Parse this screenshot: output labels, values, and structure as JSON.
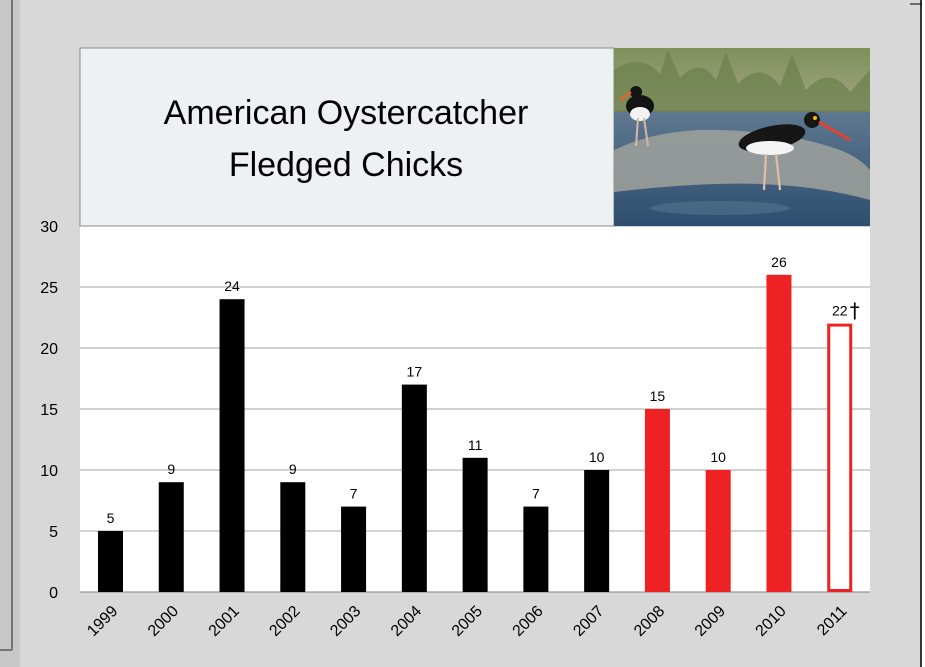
{
  "chart_data": {
    "type": "bar",
    "title": "American Oystercatcher Fledged Chicks",
    "title_lines": [
      "American Oystercatcher",
      "Fledged Chicks"
    ],
    "categories": [
      "1999",
      "2000",
      "2001",
      "2002",
      "2003",
      "2004",
      "2005",
      "2006",
      "2007",
      "2008",
      "2009",
      "2010",
      "2011"
    ],
    "values": [
      5,
      9,
      24,
      9,
      7,
      17,
      11,
      7,
      10,
      15,
      10,
      26,
      22
    ],
    "data_labels": [
      "5",
      "9",
      "24",
      "9",
      "7",
      "17",
      "11",
      "7",
      "10",
      "15",
      "10",
      "26",
      "22"
    ],
    "bar_styles": [
      "black",
      "black",
      "black",
      "black",
      "black",
      "black",
      "black",
      "black",
      "black",
      "red",
      "red",
      "red",
      "red-outline"
    ],
    "annotation": "†",
    "annotation_category": "2011",
    "ylim": [
      0,
      30
    ],
    "yticks": [
      0,
      5,
      10,
      15,
      20,
      25,
      30
    ],
    "xlabel": "",
    "ylabel": "",
    "grid": true,
    "legend": "none"
  },
  "photo": {
    "description_icon": "oystercatcher-photo"
  },
  "colors": {
    "background": "#d8d8d8",
    "plot_background": "#ffffff",
    "title_box": "#eef1f1",
    "black_bar": "#000000",
    "red_bar": "#ee2222",
    "gridline": "#a6a6a6",
    "border": "#5a5a5a"
  }
}
